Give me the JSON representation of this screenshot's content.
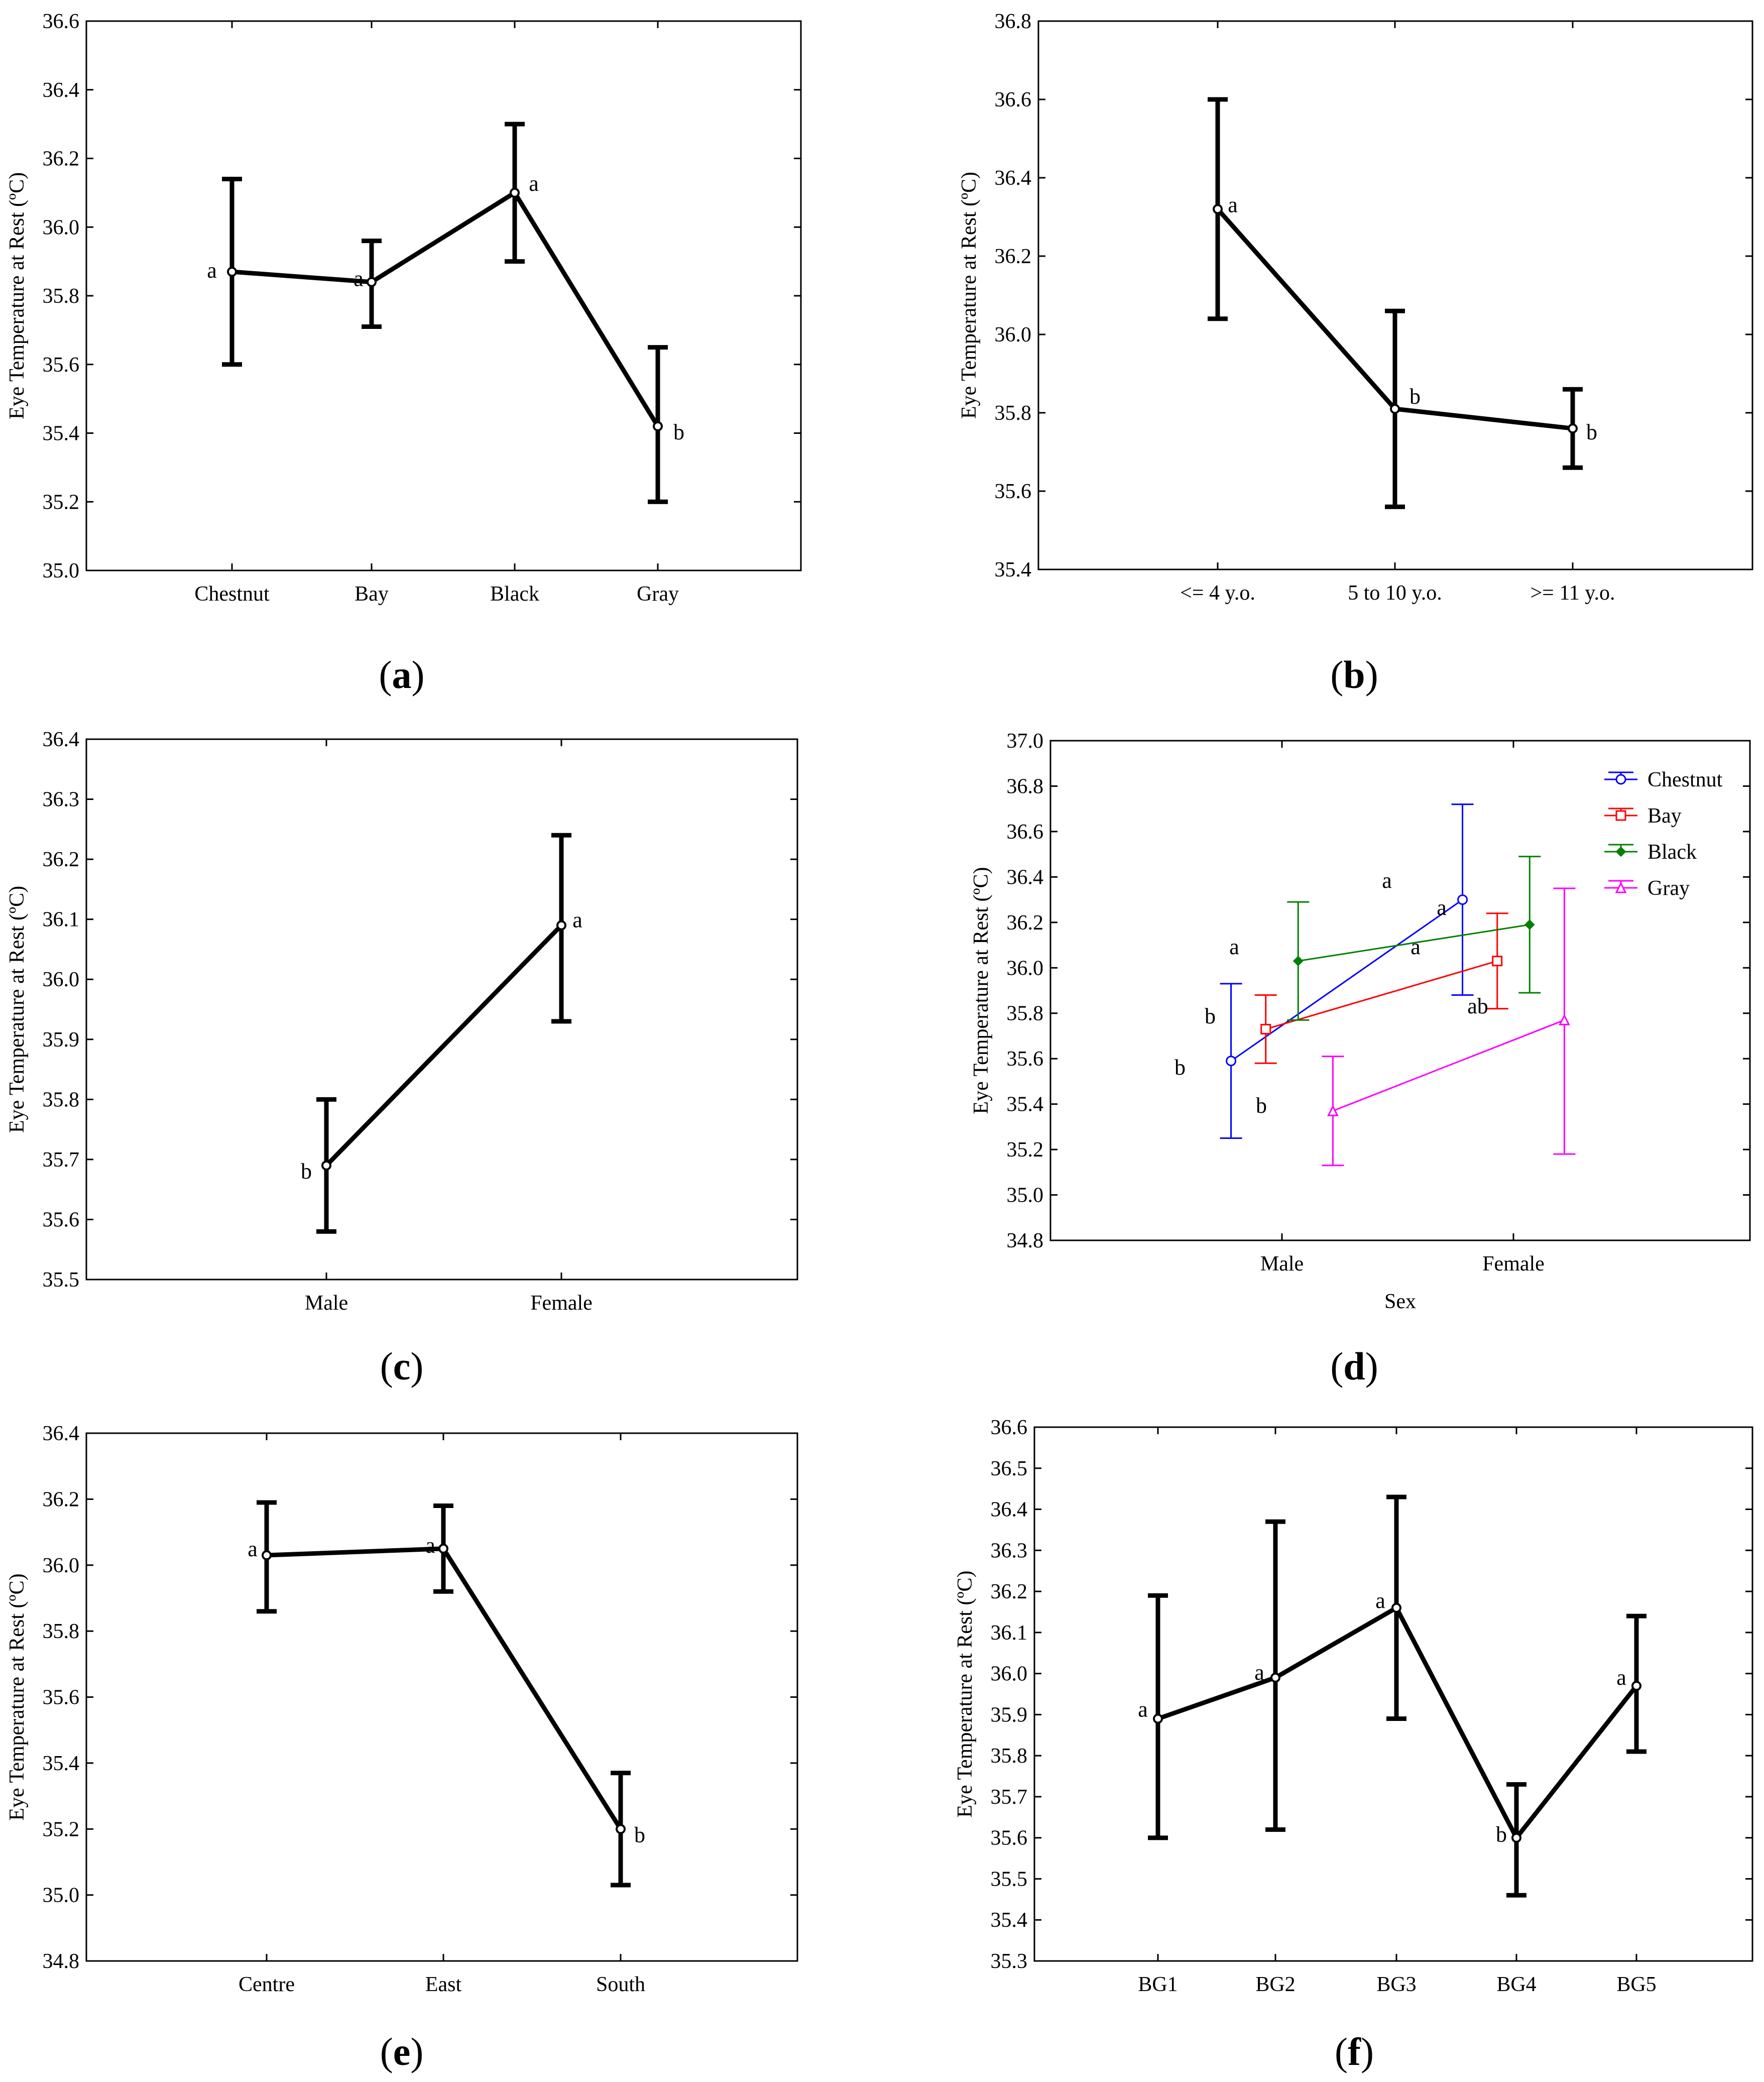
{
  "figure": {
    "panels": [
      {
        "id": "a",
        "label_open": "(",
        "label_letter": "a",
        "label_close": ")"
      },
      {
        "id": "b",
        "label_open": "(",
        "label_letter": "b",
        "label_close": ")"
      },
      {
        "id": "c",
        "label_open": "(",
        "label_letter": "c",
        "label_close": ")"
      },
      {
        "id": "d",
        "label_open": "(",
        "label_letter": "d",
        "label_close": ")"
      },
      {
        "id": "e",
        "label_open": "(",
        "label_letter": "e",
        "label_close": ")"
      },
      {
        "id": "f",
        "label_open": "(",
        "label_letter": "f",
        "label_close": ")"
      }
    ]
  },
  "chart_data": [
    {
      "id": "a",
      "type": "line",
      "ylabel": "Eye Temperature at Rest (ºC)",
      "xlabel": "",
      "ylim": [
        35.0,
        36.6
      ],
      "yticks": [
        "35.0",
        "35.2",
        "35.4",
        "35.6",
        "35.8",
        "36.0",
        "36.2",
        "36.4",
        "36.6"
      ],
      "categories": [
        "Chestnut",
        "Bay",
        "Black",
        "Gray"
      ],
      "series": [
        {
          "name": "",
          "color": "#000000",
          "values": [
            35.87,
            35.84,
            36.1,
            35.42
          ],
          "lower": [
            35.6,
            35.71,
            35.9,
            35.2
          ],
          "upper": [
            36.14,
            35.96,
            36.3,
            35.65
          ],
          "letters": [
            "a",
            "a",
            "a",
            "b"
          ]
        }
      ]
    },
    {
      "id": "b",
      "type": "line",
      "ylabel": "Eye Temperature at Rest (ºC)",
      "xlabel": "",
      "ylim": [
        35.4,
        36.8
      ],
      "yticks": [
        "35.4",
        "35.6",
        "35.8",
        "36.0",
        "36.2",
        "36.4",
        "36.6",
        "36.8"
      ],
      "categories": [
        "<= 4 y.o.",
        "5 to 10 y.o.",
        ">= 11 y.o."
      ],
      "series": [
        {
          "name": "",
          "color": "#000000",
          "values": [
            36.32,
            35.81,
            35.76
          ],
          "lower": [
            36.04,
            35.56,
            35.66
          ],
          "upper": [
            36.6,
            36.06,
            35.86
          ],
          "letters": [
            "a",
            "b",
            "b"
          ]
        }
      ]
    },
    {
      "id": "c",
      "type": "line",
      "ylabel": "Eye Temperature at Rest (ºC)",
      "xlabel": "",
      "ylim": [
        35.5,
        36.4
      ],
      "yticks": [
        "35.5",
        "35.6",
        "35.7",
        "35.8",
        "35.9",
        "36.0",
        "36.1",
        "36.2",
        "36.3",
        "36.4"
      ],
      "categories": [
        "Male",
        "Female"
      ],
      "series": [
        {
          "name": "",
          "color": "#000000",
          "values": [
            35.69,
            36.09
          ],
          "lower": [
            35.58,
            35.93
          ],
          "upper": [
            35.8,
            36.24
          ],
          "letters": [
            "b",
            "a"
          ]
        }
      ]
    },
    {
      "id": "d",
      "type": "line",
      "ylabel": "Eye Temperature at Rest (ºC)",
      "xlabel": "Sex",
      "ylim": [
        34.8,
        37.0
      ],
      "yticks": [
        "34.8",
        "35.0",
        "35.2",
        "35.4",
        "35.6",
        "35.8",
        "36.0",
        "36.2",
        "36.4",
        "36.6",
        "36.8",
        "37.0"
      ],
      "categories": [
        "Male",
        "Female"
      ],
      "legend": "top-right",
      "series": [
        {
          "name": "Chestnut",
          "color": "#0000ff",
          "marker": "circle",
          "values": [
            35.59,
            36.3
          ],
          "lower": [
            35.25,
            35.88
          ],
          "upper": [
            35.93,
            36.72
          ]
        },
        {
          "name": "Bay",
          "color": "#ff0000",
          "marker": "square",
          "values": [
            35.73,
            36.03
          ],
          "lower": [
            35.58,
            35.82
          ],
          "upper": [
            35.88,
            36.24
          ]
        },
        {
          "name": "Black",
          "color": "#008000",
          "marker": "diamond",
          "values": [
            36.03,
            36.19
          ],
          "lower": [
            35.77,
            35.89
          ],
          "upper": [
            36.29,
            36.49
          ]
        },
        {
          "name": "Gray",
          "color": "#ff00ff",
          "marker": "triangle",
          "values": [
            35.37,
            35.77
          ],
          "lower": [
            35.13,
            35.18
          ],
          "upper": [
            35.61,
            36.35
          ]
        }
      ],
      "annotations": [
        "a",
        "a",
        "a",
        "a",
        "b",
        "b",
        "b",
        "ab"
      ]
    },
    {
      "id": "e",
      "type": "line",
      "ylabel": "Eye Temperature at Rest (ºC)",
      "xlabel": "",
      "ylim": [
        34.8,
        36.4
      ],
      "yticks": [
        "34.8",
        "35.0",
        "35.2",
        "35.4",
        "35.6",
        "35.8",
        "36.0",
        "36.2",
        "36.4"
      ],
      "categories": [
        "Centre",
        "East",
        "South"
      ],
      "series": [
        {
          "name": "",
          "color": "#000000",
          "values": [
            36.03,
            36.05,
            35.2
          ],
          "lower": [
            35.86,
            35.92,
            35.03
          ],
          "upper": [
            36.19,
            36.18,
            35.37
          ],
          "letters": [
            "a",
            "a",
            "b"
          ]
        }
      ]
    },
    {
      "id": "f",
      "type": "line",
      "ylabel": "Eye Temperature at Rest (ºC)",
      "xlabel": "",
      "ylim": [
        35.3,
        36.6
      ],
      "yticks": [
        "35.3",
        "35.4",
        "35.5",
        "35.6",
        "35.7",
        "35.8",
        "35.9",
        "36.0",
        "36.1",
        "36.2",
        "36.3",
        "36.4",
        "36.5",
        "36.6"
      ],
      "categories": [
        "BG1",
        "BG2",
        "BG3",
        "BG4",
        "BG5"
      ],
      "series": [
        {
          "name": "",
          "color": "#000000",
          "values": [
            35.89,
            35.99,
            36.16,
            35.6,
            35.97
          ],
          "lower": [
            35.6,
            35.62,
            35.89,
            35.46,
            35.81
          ],
          "upper": [
            36.19,
            36.37,
            36.43,
            35.73,
            36.14
          ],
          "letters": [
            "a",
            "a",
            "a",
            "b",
            "a"
          ]
        }
      ]
    }
  ]
}
